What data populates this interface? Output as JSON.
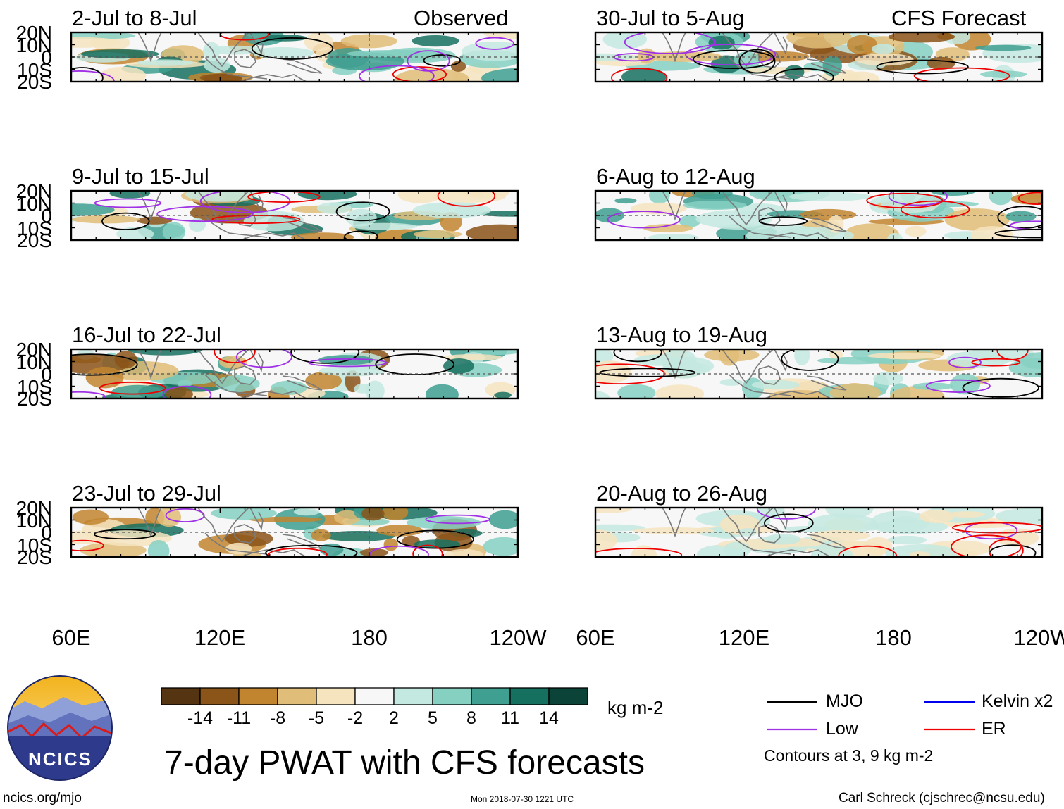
{
  "title": "7-day PWAT with CFS forecasts",
  "headers": {
    "observed": "Observed",
    "forecast": "CFS Forecast"
  },
  "left_panels": [
    {
      "label": "2-Jul to 8-Jul"
    },
    {
      "label": "9-Jul to 15-Jul"
    },
    {
      "label": "16-Jul to 22-Jul"
    },
    {
      "label": "23-Jul to 29-Jul"
    }
  ],
  "right_panels": [
    {
      "label": "30-Jul to 5-Aug"
    },
    {
      "label": "6-Aug to 12-Aug"
    },
    {
      "label": "13-Aug to 19-Aug"
    },
    {
      "label": "20-Aug to 26-Aug"
    }
  ],
  "lat_labels": [
    "20N",
    "10N",
    "0",
    "10S",
    "20S"
  ],
  "lon_labels": [
    "60E",
    "120E",
    "180",
    "120W"
  ],
  "colorbar": {
    "colors": [
      "#553412",
      "#8b5419",
      "#c2852f",
      "#e0bd78",
      "#f6e4bf",
      "#f7f7f7",
      "#c4e9e0",
      "#86d0c2",
      "#3f9f90",
      "#16705f",
      "#0b4338"
    ],
    "ticks": [
      "-14",
      "-11",
      "-8",
      "-5",
      "-2",
      "2",
      "5",
      "8",
      "11",
      "14"
    ],
    "units": "kg m-2"
  },
  "legend": {
    "items": [
      {
        "label": "MJO",
        "color": "#000000"
      },
      {
        "label": "Low",
        "color": "#a030e6"
      },
      {
        "label": "Kelvin x2",
        "color": "#0000ee"
      },
      {
        "label": "ER",
        "color": "#ee0000"
      }
    ],
    "note": "Contours at 3, 9 kg m-2"
  },
  "logo": {
    "text": "NCICS"
  },
  "footer": {
    "left": "ncics.org/mjo",
    "center": "Mon 2018-07-30 1221 UTC",
    "right": "Carl Schreck (cjschrec@ncsu.edu)"
  }
}
